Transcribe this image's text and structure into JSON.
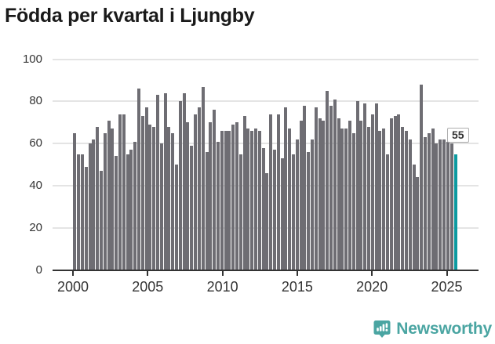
{
  "header": {
    "title": "Födda per kvartal i Ljungby"
  },
  "colors": {
    "bar": "#6e6d73",
    "highlight_bar": "#0d9aa0",
    "gridline": "#e4e4e4",
    "axis": "#333333",
    "title_text": "#1a1a1a",
    "logo_teal": "#4aa5a2"
  },
  "callout": {
    "label": "55"
  },
  "footer": {
    "brand": "Newsworthy"
  },
  "chart_data": {
    "type": "bar",
    "title": "Födda per kvartal i Ljungby",
    "xlabel": "",
    "ylabel": "",
    "ylim": [
      0,
      100
    ],
    "yticks": [
      0,
      20,
      40,
      60,
      80,
      100
    ],
    "xticks": [
      "2000",
      "2005",
      "2010",
      "2015",
      "2020",
      "2025"
    ],
    "grid": true,
    "legend_position": "none",
    "highlight": {
      "category": "2025Q2",
      "value": 55,
      "label": "55",
      "color": "#0d9aa0"
    },
    "categories": [
      "2000Q1",
      "2000Q2",
      "2000Q3",
      "2000Q4",
      "2001Q1",
      "2001Q2",
      "2001Q3",
      "2001Q4",
      "2002Q1",
      "2002Q2",
      "2002Q3",
      "2002Q4",
      "2003Q1",
      "2003Q2",
      "2003Q3",
      "2003Q4",
      "2004Q1",
      "2004Q2",
      "2004Q3",
      "2004Q4",
      "2005Q1",
      "2005Q2",
      "2005Q3",
      "2005Q4",
      "2006Q1",
      "2006Q2",
      "2006Q3",
      "2006Q4",
      "2007Q1",
      "2007Q2",
      "2007Q3",
      "2007Q4",
      "2008Q1",
      "2008Q2",
      "2008Q3",
      "2008Q4",
      "2009Q1",
      "2009Q2",
      "2009Q3",
      "2009Q4",
      "2010Q1",
      "2010Q2",
      "2010Q3",
      "2010Q4",
      "2011Q1",
      "2011Q2",
      "2011Q3",
      "2011Q4",
      "2012Q1",
      "2012Q2",
      "2012Q3",
      "2012Q4",
      "2013Q1",
      "2013Q2",
      "2013Q3",
      "2013Q4",
      "2014Q1",
      "2014Q2",
      "2014Q3",
      "2014Q4",
      "2015Q1",
      "2015Q2",
      "2015Q3",
      "2015Q4",
      "2016Q1",
      "2016Q2",
      "2016Q3",
      "2016Q4",
      "2017Q1",
      "2017Q2",
      "2017Q3",
      "2017Q4",
      "2018Q1",
      "2018Q2",
      "2018Q3",
      "2018Q4",
      "2019Q1",
      "2019Q2",
      "2019Q3",
      "2019Q4",
      "2020Q1",
      "2020Q2",
      "2020Q3",
      "2020Q4",
      "2021Q1",
      "2021Q2",
      "2021Q3",
      "2021Q4",
      "2022Q1",
      "2022Q2",
      "2022Q3",
      "2022Q4",
      "2023Q1",
      "2023Q2",
      "2023Q3",
      "2023Q4",
      "2024Q1",
      "2024Q2",
      "2024Q3",
      "2024Q4",
      "2025Q1",
      "2025Q2"
    ],
    "values": [
      65,
      55,
      55,
      49,
      60,
      62,
      68,
      47,
      65,
      71,
      67,
      54,
      74,
      74,
      55,
      57,
      61,
      86,
      73,
      77,
      69,
      68,
      83,
      60,
      84,
      68,
      65,
      50,
      80,
      84,
      70,
      59,
      74,
      77,
      87,
      56,
      70,
      76,
      61,
      66,
      66,
      66,
      69,
      70,
      55,
      73,
      67,
      66,
      67,
      66,
      58,
      46,
      74,
      57,
      74,
      53,
      77,
      67,
      55,
      62,
      71,
      78,
      56,
      62,
      77,
      72,
      71,
      85,
      78,
      81,
      72,
      67,
      67,
      71,
      65,
      80,
      71,
      79,
      68,
      74,
      79,
      66,
      67,
      55,
      72,
      73,
      74,
      68,
      66,
      62,
      50,
      44,
      88,
      63,
      65,
      67,
      60,
      62,
      62,
      61,
      60,
      55
    ]
  }
}
